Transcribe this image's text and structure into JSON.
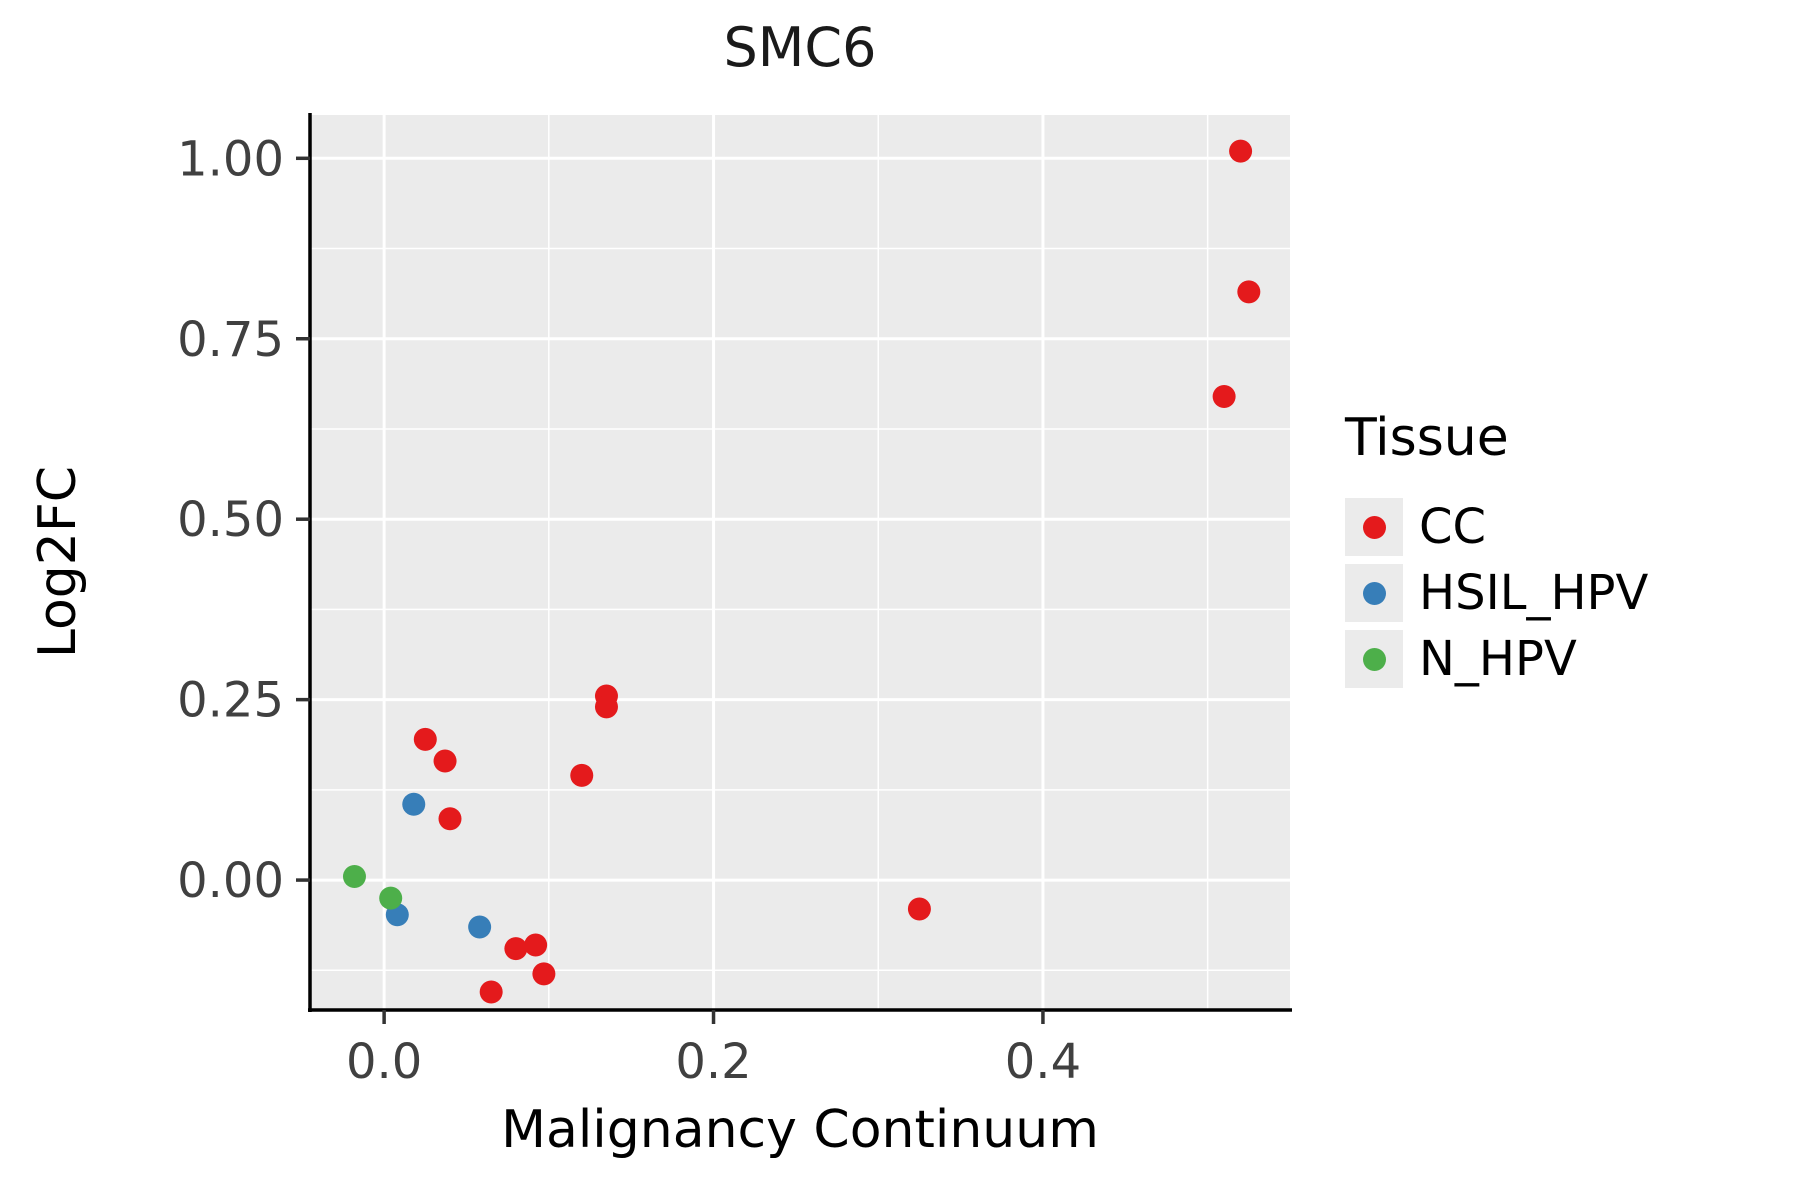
{
  "chart_data": {
    "type": "scatter",
    "title": "SMC6",
    "xlabel": "Malignancy Continuum",
    "ylabel": "Log2FC",
    "legend_title": "Tissue",
    "legend_position": "right",
    "grid": true,
    "panel_background": "#ebebeb",
    "gridline_color": "#ffffff",
    "xlim": [
      -0.045,
      0.55
    ],
    "ylim": [
      -0.18,
      1.06
    ],
    "x_ticks": [
      0.0,
      0.2,
      0.4
    ],
    "x_tick_labels": [
      "0.0",
      "0.2",
      "0.4"
    ],
    "x_minor_ticks": [
      0.1,
      0.3,
      0.5
    ],
    "y_ticks": [
      0.0,
      0.25,
      0.5,
      0.75,
      1.0
    ],
    "y_tick_labels": [
      "0.00",
      "0.25",
      "0.50",
      "0.75",
      "1.00"
    ],
    "y_minor_ticks": [
      -0.125,
      0.125,
      0.375,
      0.625,
      0.875
    ],
    "series": [
      {
        "name": "CC",
        "color": "#e41a1c",
        "points": [
          [
            0.52,
            1.01
          ],
          [
            0.525,
            0.815
          ],
          [
            0.51,
            0.67
          ],
          [
            0.135,
            0.255
          ],
          [
            0.135,
            0.24
          ],
          [
            0.12,
            0.145
          ],
          [
            0.025,
            0.195
          ],
          [
            0.037,
            0.165
          ],
          [
            0.04,
            0.085
          ],
          [
            0.325,
            -0.04
          ],
          [
            0.08,
            -0.095
          ],
          [
            0.092,
            -0.09
          ],
          [
            0.097,
            -0.13
          ],
          [
            0.065,
            -0.155
          ]
        ]
      },
      {
        "name": "HSIL_HPV",
        "color": "#377eb8",
        "points": [
          [
            0.018,
            0.105
          ],
          [
            0.008,
            -0.048
          ],
          [
            0.058,
            -0.065
          ]
        ]
      },
      {
        "name": "N_HPV",
        "color": "#4daf4a",
        "points": [
          [
            -0.018,
            0.005
          ],
          [
            0.004,
            -0.025
          ]
        ]
      }
    ]
  }
}
